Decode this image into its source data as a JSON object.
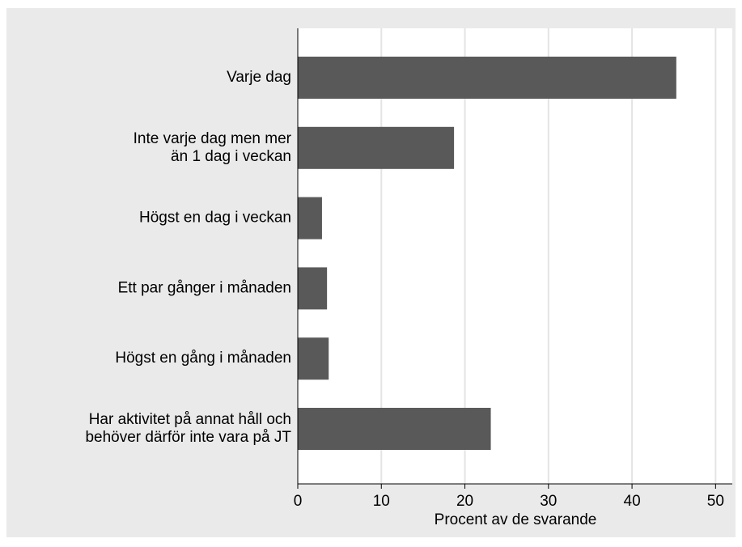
{
  "chart_data": {
    "type": "barh",
    "categories": [
      [
        "Varje dag"
      ],
      [
        "Inte varje dag men mer",
        "än 1 dag i veckan"
      ],
      [
        "Högst en dag i veckan"
      ],
      [
        "Ett par gånger i månaden"
      ],
      [
        "Högst en gång i månaden"
      ],
      [
        "Har aktivitet på annat håll och",
        "behöver därför inte vara på JT"
      ]
    ],
    "values": [
      45.3,
      18.7,
      2.9,
      3.5,
      3.7,
      23.1
    ],
    "color": "#595959",
    "xlabel": "Procent av de svarande",
    "xlim": [
      0,
      52
    ],
    "xticks": [
      0,
      10,
      20,
      30,
      40,
      50
    ],
    "grid": true
  }
}
